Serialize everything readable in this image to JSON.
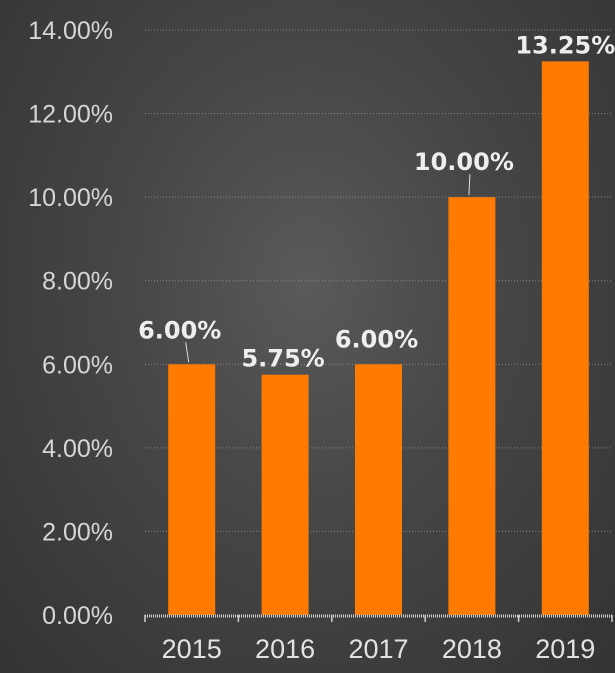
{
  "chart_data": {
    "type": "bar",
    "categories": [
      "2015",
      "2016",
      "2017",
      "2018",
      "2019"
    ],
    "values": [
      6.0,
      5.75,
      6.0,
      10.0,
      13.25
    ],
    "data_labels": [
      "6.00%",
      "5.75%",
      "6.00%",
      "10.00%",
      "13.25%"
    ],
    "y_tick_labels": [
      "0.00%",
      "2.00%",
      "4.00%",
      "6.00%",
      "8.00%",
      "10.00%",
      "12.00%",
      "14.00%"
    ],
    "ylim": [
      0,
      14
    ],
    "y_tick_step": 2,
    "title": "",
    "xlabel": "",
    "ylabel": "",
    "grid": true,
    "bar_color": "#ff7a00"
  }
}
